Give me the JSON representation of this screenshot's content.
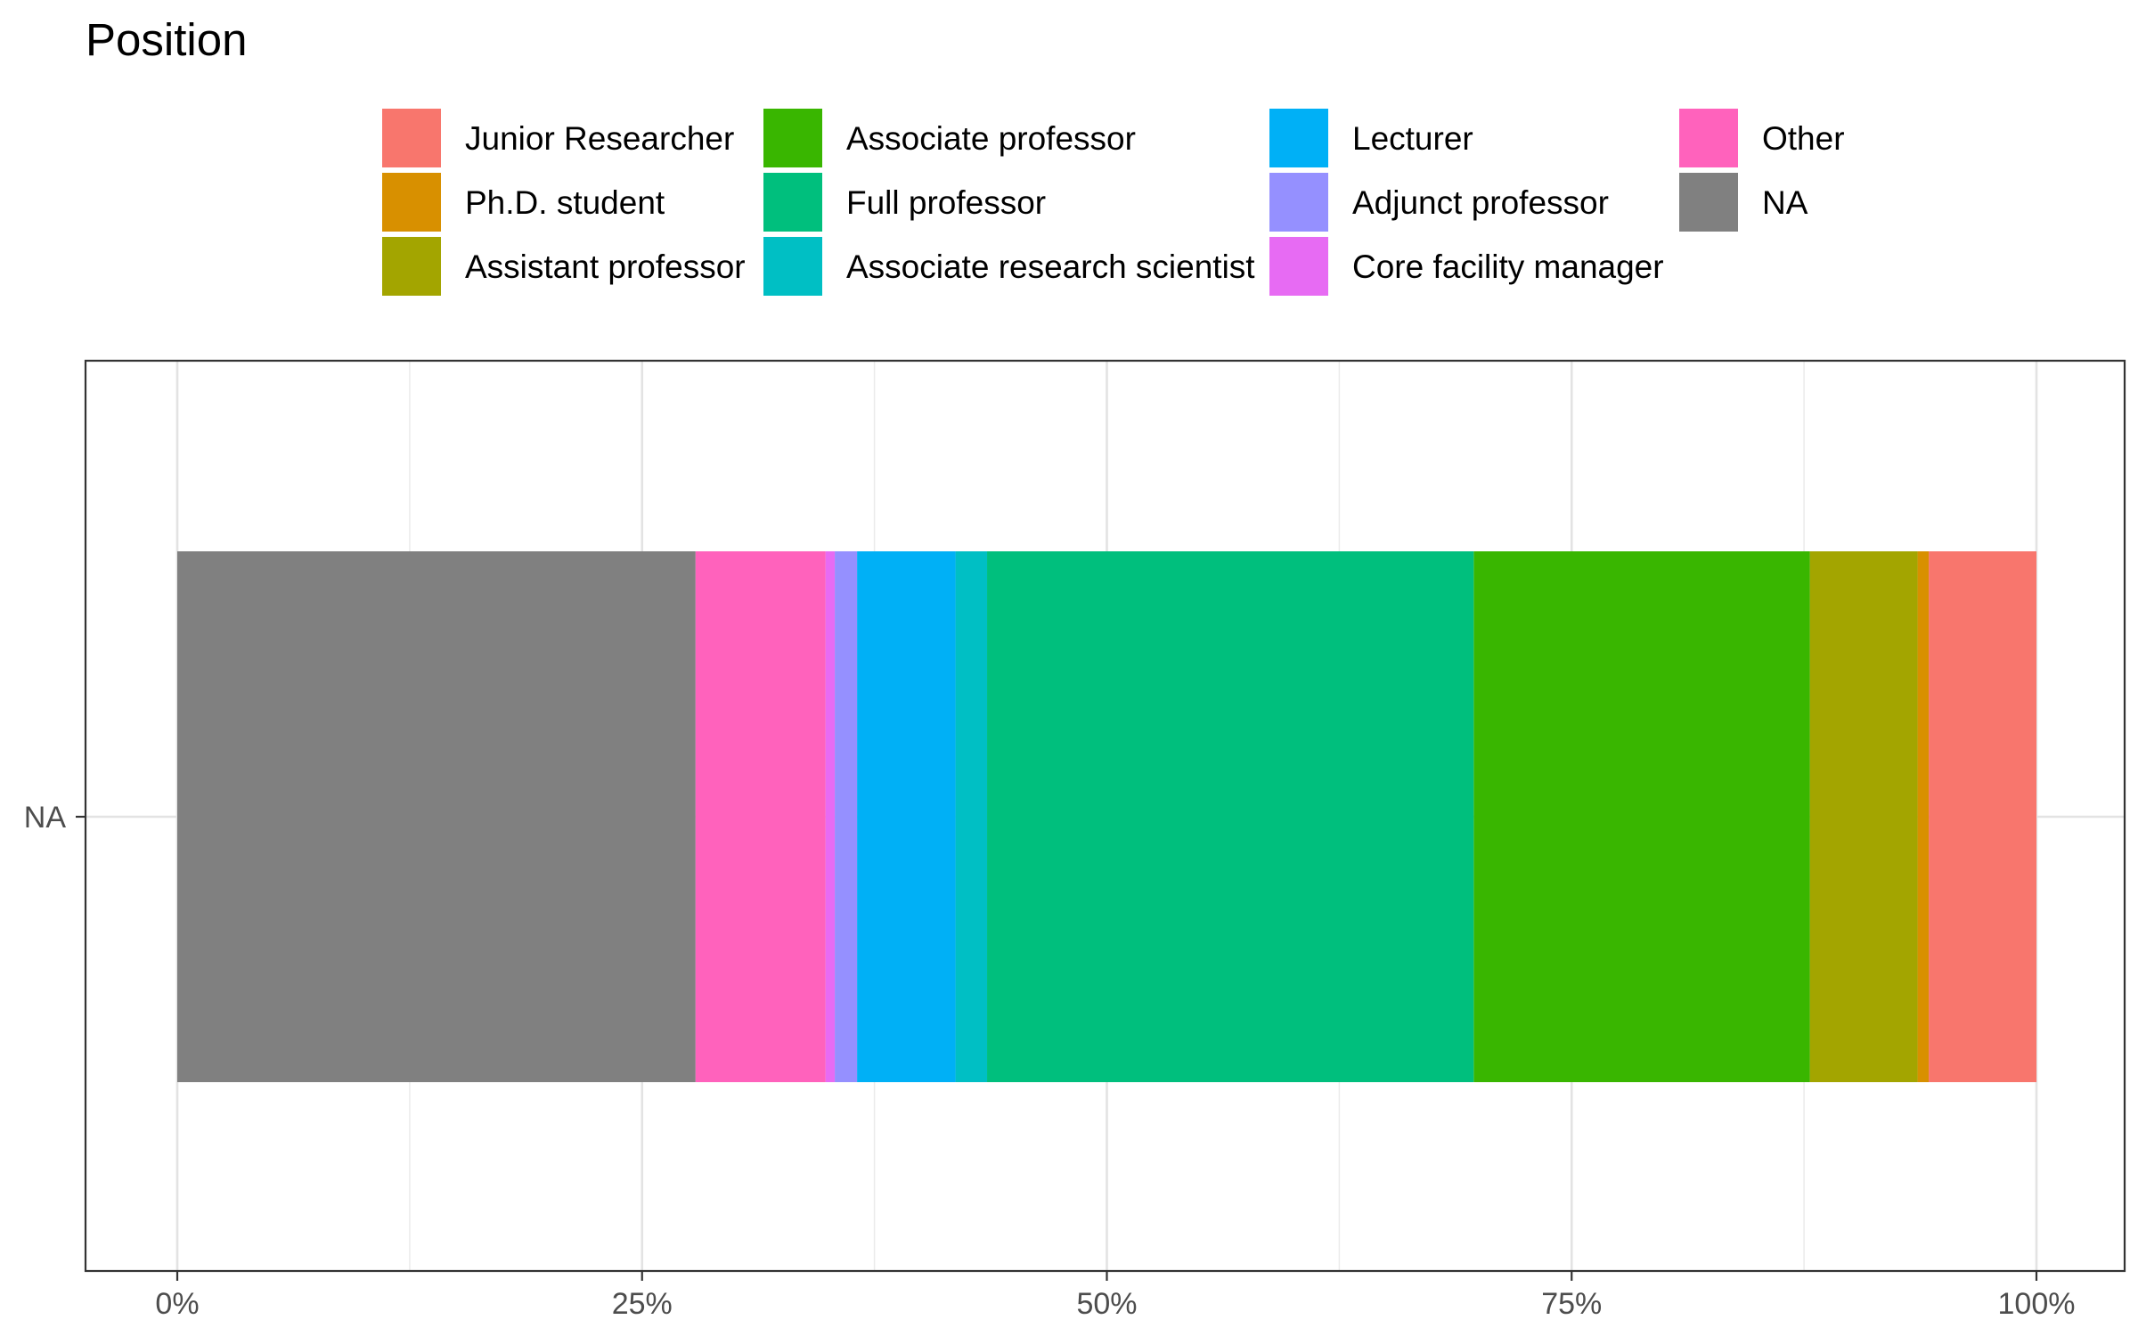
{
  "chart_data": {
    "type": "bar",
    "orientation": "horizontal",
    "stacked": "fill",
    "title": "Position",
    "xlabel": "",
    "ylabel": "",
    "xlim": [
      0,
      1
    ],
    "x_ticks": [
      0,
      0.25,
      0.5,
      0.75,
      1
    ],
    "x_tick_labels": [
      "0%",
      "25%",
      "50%",
      "75%",
      "100%"
    ],
    "categories": [
      "NA"
    ],
    "grid": true,
    "legend_position": "top",
    "series": [
      {
        "name": "Junior Researcher",
        "color": "#F8766D",
        "values": [
          0.058
        ]
      },
      {
        "name": "Ph.D. student",
        "color": "#D89000",
        "values": [
          0.006
        ]
      },
      {
        "name": "Assistant professor",
        "color": "#A3A500",
        "values": [
          0.058
        ]
      },
      {
        "name": "Associate professor",
        "color": "#39B600",
        "values": [
          0.181
        ]
      },
      {
        "name": "Full professor",
        "color": "#00BF7D",
        "values": [
          0.262
        ]
      },
      {
        "name": "Associate research scientist",
        "color": "#00BFC4",
        "values": [
          0.017
        ]
      },
      {
        "name": "Lecturer",
        "color": "#00B0F6",
        "values": [
          0.053
        ]
      },
      {
        "name": "Adjunct professor",
        "color": "#9590FF",
        "values": [
          0.012
        ]
      },
      {
        "name": "Core facility manager",
        "color": "#E76BF3",
        "values": [
          0.005
        ]
      },
      {
        "name": "Other",
        "color": "#FF62BC",
        "values": [
          0.07
        ]
      },
      {
        "name": "NA",
        "color": "#808080",
        "values": [
          0.279
        ]
      }
    ]
  }
}
